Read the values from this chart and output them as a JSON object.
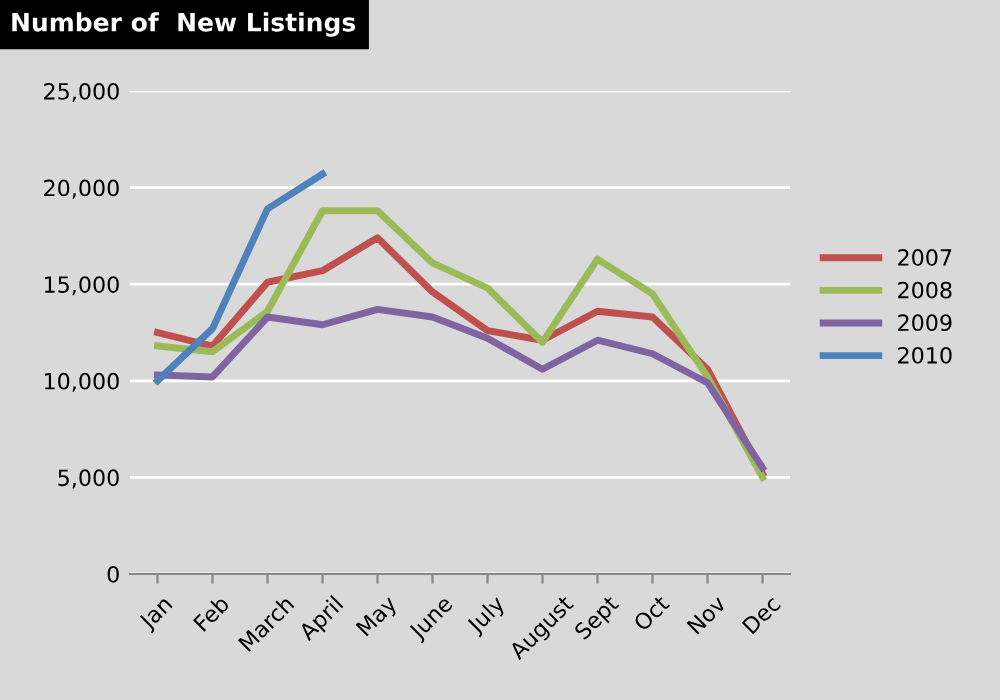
{
  "chart_data": {
    "type": "line",
    "title": "Number of  New Listings",
    "categories": [
      "Jan",
      "Feb",
      "March",
      "April",
      "May",
      "June",
      "July",
      "August",
      "Sept",
      "Oct",
      "Nov",
      "Dec"
    ],
    "series": [
      {
        "name": "2007",
        "color": "#c0504d",
        "values": [
          12500,
          11800,
          15100,
          15700,
          17400,
          14600,
          12600,
          12100,
          13600,
          13300,
          10600,
          5200
        ]
      },
      {
        "name": "2008",
        "color": "#9bbb59",
        "values": [
          11800,
          11500,
          13600,
          18800,
          18800,
          16100,
          14800,
          12000,
          16300,
          14500,
          10200,
          5000
        ]
      },
      {
        "name": "2009",
        "color": "#8064a2",
        "values": [
          10300,
          10200,
          13300,
          12900,
          13700,
          13300,
          12200,
          10600,
          12100,
          11400,
          9900,
          5500
        ]
      },
      {
        "name": "2010",
        "color": "#4f81bd",
        "values": [
          10000,
          12700,
          18900,
          20700,
          null,
          null,
          null,
          null,
          null,
          null,
          null,
          null
        ]
      }
    ],
    "ylim": [
      0,
      25000
    ],
    "yticks": [
      {
        "value": 0,
        "label": "0"
      },
      {
        "value": 5000,
        "label": "5,000"
      },
      {
        "value": 10000,
        "label": "10,000"
      },
      {
        "value": 15000,
        "label": "15,000"
      },
      {
        "value": 20000,
        "label": "20,000"
      },
      {
        "value": 25000,
        "label": "25,000"
      }
    ],
    "grid": "y",
    "legend": "right",
    "marker": "none",
    "line_style": "solid"
  }
}
